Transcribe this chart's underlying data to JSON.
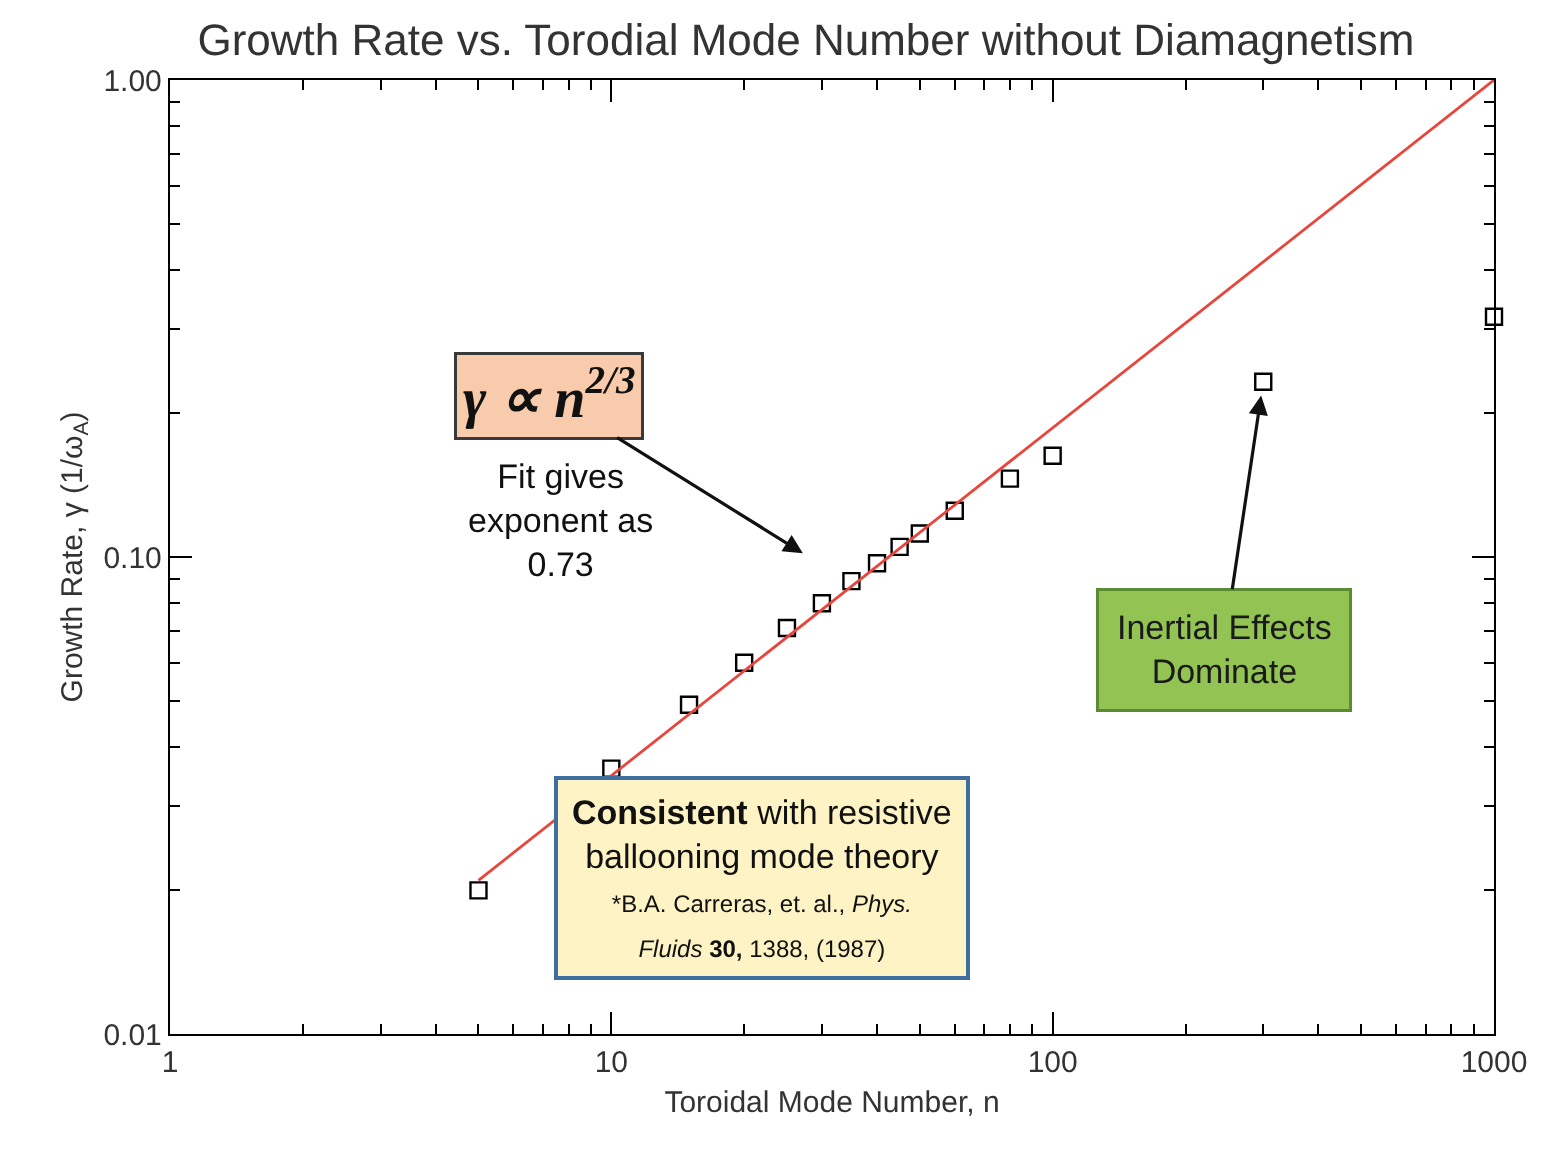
{
  "chart_data": {
    "type": "scatter",
    "title": "Growth Rate vs. Torodial Mode Number without Diamagnetism",
    "xlabel": "Toroidal Mode Number, n",
    "ylabel": "Growth Rate, γ (1/ω$_{A}$)",
    "series": [
      {
        "color": "#000000",
        "marker": "square",
        "x": [
          5,
          10,
          15,
          20,
          25,
          30,
          35,
          40,
          45,
          50,
          60,
          80,
          100,
          300,
          1000
        ],
        "values": [
          0.02,
          0.036,
          0.049,
          0.06,
          0.071,
          0.08,
          0.089,
          0.097,
          0.105,
          0.112,
          0.125,
          0.146,
          0.163,
          0.233,
          0.319
        ]
      },
      {
        "type": "line",
        "color": "#e8453c",
        "x": [
          5,
          1000
        ],
        "values": [
          0.021,
          1.0
        ]
      }
    ],
    "xlim": [
      1,
      1000
    ],
    "ylim": [
      0.01,
      1
    ],
    "xticks": [
      1,
      10,
      100,
      1000
    ],
    "yticks": [
      0.01,
      {
        "value": 0.1,
        "label": "0.10"
      },
      {
        "value": 1,
        "label": "1.00"
      }
    ],
    "log": "xy",
    "annotations": [
      "γ ∝ n$^{2/3}$",
      "Fit gives exponent as 0.73",
      {
        "text": "Inertial Effects Dominate",
        "x": 300,
        "y": 0.233
      },
      "Consistent with resistive ballooning mode theory",
      "*B.A. Carreras, et. al., Phys. Fluids 30, 1388, (1987)"
    ]
  }
}
